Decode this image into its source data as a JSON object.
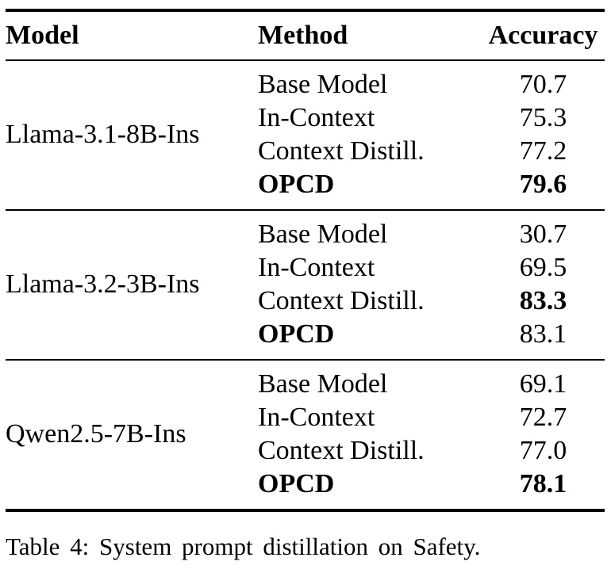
{
  "table": {
    "headers": {
      "model": "Model",
      "method": "Method",
      "accuracy": "Accuracy"
    },
    "groups": [
      {
        "model": "Llama-3.1-8B-Ins",
        "rows": [
          {
            "method": "Base Model",
            "accuracy": "70.7",
            "bold_method": false,
            "bold_value": false
          },
          {
            "method": "In-Context",
            "accuracy": "75.3",
            "bold_method": false,
            "bold_value": false
          },
          {
            "method": "Context Distill.",
            "accuracy": "77.2",
            "bold_method": false,
            "bold_value": false
          },
          {
            "method": "OPCD",
            "accuracy": "79.6",
            "bold_method": true,
            "bold_value": true
          }
        ]
      },
      {
        "model": "Llama-3.2-3B-Ins",
        "rows": [
          {
            "method": "Base Model",
            "accuracy": "30.7",
            "bold_method": false,
            "bold_value": false
          },
          {
            "method": "In-Context",
            "accuracy": "69.5",
            "bold_method": false,
            "bold_value": false
          },
          {
            "method": "Context Distill.",
            "accuracy": "83.3",
            "bold_method": false,
            "bold_value": true
          },
          {
            "method": "OPCD",
            "accuracy": "83.1",
            "bold_method": true,
            "bold_value": false
          }
        ]
      },
      {
        "model": "Qwen2.5-7B-Ins",
        "rows": [
          {
            "method": "Base Model",
            "accuracy": "69.1",
            "bold_method": false,
            "bold_value": false
          },
          {
            "method": "In-Context",
            "accuracy": "72.7",
            "bold_method": false,
            "bold_value": false
          },
          {
            "method": "Context Distill.",
            "accuracy": "77.0",
            "bold_method": false,
            "bold_value": false
          },
          {
            "method": "OPCD",
            "accuracy": "78.1",
            "bold_method": true,
            "bold_value": true
          }
        ]
      }
    ]
  },
  "caption": "Table 4: System prompt distillation on Safety.",
  "colors": {
    "text": "#000000",
    "background": "#ffffff",
    "rule": "#000000"
  }
}
